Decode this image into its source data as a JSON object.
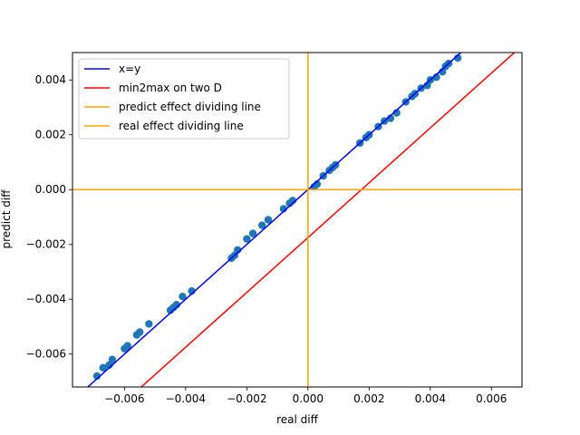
{
  "chart_data": {
    "type": "scatter",
    "xlabel": "real diff",
    "ylabel": "predict diff",
    "xlim": [
      -0.0077,
      0.007
    ],
    "ylim": [
      -0.0072,
      0.005
    ],
    "xticks": [
      -0.006,
      -0.004,
      -0.002,
      0.0,
      0.002,
      0.004,
      0.006
    ],
    "xtick_labels": [
      "−0.006",
      "−0.004",
      "−0.002",
      "0.000",
      "0.002",
      "0.004",
      "0.006"
    ],
    "yticks": [
      -0.006,
      -0.004,
      -0.002,
      0.0,
      0.002,
      0.004
    ],
    "ytick_labels": [
      "−0.006",
      "−0.004",
      "−0.002",
      "0.000",
      "0.002",
      "0.004"
    ],
    "grid": false,
    "legend_position": "top-left",
    "scatter": {
      "color": "#1f77b4",
      "points": [
        [
          -0.0069,
          -0.0068
        ],
        [
          -0.0067,
          -0.0065
        ],
        [
          -0.0065,
          -0.0064
        ],
        [
          -0.0064,
          -0.0062
        ],
        [
          -0.006,
          -0.0058
        ],
        [
          -0.0059,
          -0.0057
        ],
        [
          -0.0056,
          -0.0053
        ],
        [
          -0.0055,
          -0.0052
        ],
        [
          -0.0052,
          -0.0049
        ],
        [
          -0.0045,
          -0.0044
        ],
        [
          -0.0044,
          -0.0043
        ],
        [
          -0.0043,
          -0.0042
        ],
        [
          -0.0041,
          -0.0039
        ],
        [
          -0.0038,
          -0.0037
        ],
        [
          -0.0025,
          -0.0025
        ],
        [
          -0.0024,
          -0.0024
        ],
        [
          -0.0023,
          -0.0022
        ],
        [
          -0.002,
          -0.0018
        ],
        [
          -0.0018,
          -0.0016
        ],
        [
          -0.0015,
          -0.0013
        ],
        [
          -0.0013,
          -0.0011
        ],
        [
          -0.0008,
          -0.0007
        ],
        [
          -0.0006,
          -0.0005
        ],
        [
          -0.0005,
          -0.0004
        ],
        [
          0.0002,
          0.0001
        ],
        [
          0.0003,
          0.0002
        ],
        [
          0.0005,
          0.0005
        ],
        [
          0.0007,
          0.0007
        ],
        [
          0.0008,
          0.0008
        ],
        [
          0.0009,
          0.0009
        ],
        [
          0.0017,
          0.0017
        ],
        [
          0.0019,
          0.0019
        ],
        [
          0.002,
          0.002
        ],
        [
          0.0023,
          0.0023
        ],
        [
          0.0025,
          0.0025
        ],
        [
          0.0027,
          0.0026
        ],
        [
          0.0029,
          0.0028
        ],
        [
          0.0032,
          0.0032
        ],
        [
          0.0034,
          0.0034
        ],
        [
          0.0035,
          0.0035
        ],
        [
          0.0037,
          0.0037
        ],
        [
          0.0039,
          0.0038
        ],
        [
          0.004,
          0.004
        ],
        [
          0.0042,
          0.0041
        ],
        [
          0.0044,
          0.0043
        ],
        [
          0.0045,
          0.0045
        ],
        [
          0.0046,
          0.0046
        ],
        [
          0.0049,
          0.0048
        ]
      ]
    },
    "lines": [
      {
        "name": "x=y",
        "color": "#0000ff",
        "kind": "diagonal",
        "slope": 1,
        "intercept": 0
      },
      {
        "name": "min2max on two D",
        "color": "#ff0000",
        "kind": "diagonal",
        "slope": 1,
        "intercept": -0.00175
      },
      {
        "name": "predict effect dividing line",
        "color": "#ffa500",
        "kind": "horizontal",
        "value": 0
      },
      {
        "name": "real effect dividing line",
        "color": "#ffa500",
        "kind": "vertical",
        "value": 0
      }
    ]
  }
}
